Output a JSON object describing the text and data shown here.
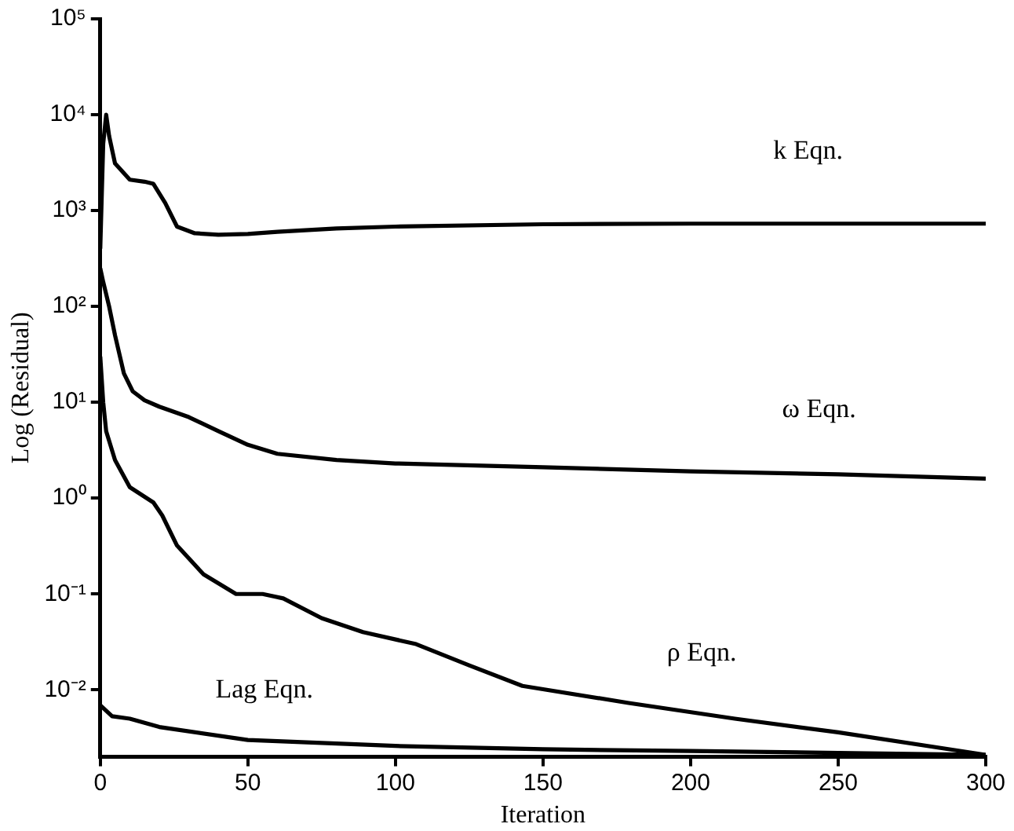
{
  "chart_data": {
    "type": "line",
    "xlabel": "Iteration",
    "ylabel": "Log (Residual)",
    "log": "y",
    "grid": false,
    "legend": false,
    "marker": "none",
    "line_style": "solid",
    "xlim": [
      0,
      300
    ],
    "xticks": [
      0,
      50,
      100,
      150,
      200,
      250,
      300
    ],
    "ylim": [
      0.002,
      100000
    ],
    "yticks": [
      {
        "value": 0.01,
        "label": "10⁻²"
      },
      {
        "value": 0.1,
        "label": "10⁻¹"
      },
      {
        "value": 1,
        "label": "10⁰"
      },
      {
        "value": 10,
        "label": "10¹"
      },
      {
        "value": 100,
        "label": "10²"
      },
      {
        "value": 1000,
        "label": "10³"
      },
      {
        "value": 10000,
        "label": "10⁴"
      },
      {
        "value": 100000,
        "label": "10⁵"
      }
    ],
    "series": [
      {
        "name": "k Eqn.",
        "color": "#000000",
        "x": [
          0,
          1,
          2,
          3,
          5,
          10,
          15,
          18,
          22,
          26,
          32,
          40,
          50,
          60,
          80,
          100,
          150,
          200,
          250,
          300
        ],
        "values": [
          400,
          5000,
          10000,
          6000,
          3100,
          2100,
          2000,
          1900,
          1200,
          680,
          580,
          560,
          570,
          600,
          650,
          680,
          720,
          730,
          730,
          730
        ]
      },
      {
        "name": "ω Eqn.",
        "color": "#000000",
        "x": [
          0,
          1,
          3,
          5,
          8,
          11,
          15,
          20,
          30,
          40,
          50,
          60,
          80,
          100,
          150,
          200,
          250,
          300
        ],
        "values": [
          250,
          180,
          100,
          50,
          20,
          13,
          10.5,
          9,
          7,
          5,
          3.6,
          2.9,
          2.5,
          2.3,
          2.1,
          1.9,
          1.77,
          1.6
        ]
      },
      {
        "name": "ρ Eqn.",
        "color": "#000000",
        "x": [
          0,
          1,
          2,
          5,
          10,
          18,
          21,
          26,
          35,
          46,
          55,
          62,
          75,
          89,
          107,
          125,
          143,
          179,
          215,
          250,
          300
        ],
        "values": [
          30,
          10,
          5,
          2.5,
          1.3,
          0.9,
          0.66,
          0.32,
          0.16,
          0.1,
          0.1,
          0.09,
          0.056,
          0.04,
          0.03,
          0.018,
          0.011,
          0.0073,
          0.005,
          0.0036,
          0.0021
        ]
      },
      {
        "name": "Lag Eqn.",
        "color": "#000000",
        "x": [
          0,
          4,
          10,
          20,
          50,
          100,
          150,
          200,
          250,
          300
        ],
        "values": [
          0.0069,
          0.0053,
          0.005,
          0.0041,
          0.003,
          0.0026,
          0.0024,
          0.0023,
          0.0022,
          0.0021
        ]
      }
    ]
  }
}
